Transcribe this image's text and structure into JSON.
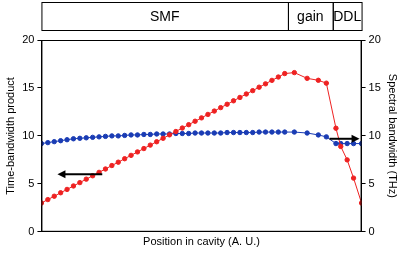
{
  "chart_data": {
    "type": "line",
    "x_label": "Position in cavity (A. U.)",
    "y_label": "Time-bandwidth product",
    "y2_label": "Spectral bandwidth (THz)",
    "regions": [
      {
        "label": "SMF",
        "start": 0,
        "end": 77
      },
      {
        "label": "gain",
        "start": 77,
        "end": 91
      },
      {
        "label": "DDL",
        "start": 91,
        "end": 100
      }
    ],
    "x": [
      0,
      2,
      4,
      6,
      8,
      10,
      12,
      14,
      16,
      18,
      20,
      22,
      24,
      26,
      28,
      30,
      32,
      34,
      36,
      38,
      40,
      42,
      44,
      46,
      48,
      50,
      52,
      54,
      56,
      58,
      60,
      62,
      64,
      66,
      68,
      70,
      72,
      74,
      76,
      79,
      83,
      86.5,
      89,
      92,
      93.5,
      95.5,
      97.5,
      100
    ],
    "series": [
      {
        "name": "Time-bandwidth product",
        "color": "#ee2222",
        "marker": "circle",
        "values": [
          3.0,
          3.36,
          3.71,
          4.07,
          4.42,
          4.78,
          5.13,
          5.49,
          5.84,
          6.2,
          6.55,
          6.91,
          7.26,
          7.62,
          7.97,
          8.33,
          8.68,
          9.04,
          9.39,
          9.75,
          10.11,
          10.46,
          10.82,
          11.17,
          11.53,
          11.88,
          12.24,
          12.59,
          12.95,
          13.3,
          13.66,
          14.01,
          14.37,
          14.72,
          15.08,
          15.43,
          15.79,
          16.14,
          16.5,
          16.6,
          16.0,
          15.8,
          15.5,
          10.8,
          8.9,
          7.5,
          5.6,
          3.0
        ]
      },
      {
        "name": "Spectral bandwidth (THz)",
        "color": "#1a3cb4",
        "marker": "circle",
        "axis": "y2",
        "values": [
          9.2,
          9.3,
          9.4,
          9.5,
          9.6,
          9.7,
          9.75,
          9.8,
          9.85,
          9.9,
          9.95,
          10.0,
          10.0,
          10.05,
          10.1,
          10.1,
          10.15,
          10.15,
          10.2,
          10.2,
          10.2,
          10.25,
          10.25,
          10.25,
          10.3,
          10.3,
          10.3,
          10.3,
          10.3,
          10.35,
          10.35,
          10.35,
          10.35,
          10.35,
          10.4,
          10.4,
          10.4,
          10.4,
          10.4,
          10.4,
          10.3,
          10.1,
          9.9,
          9.2,
          9.2,
          9.2,
          9.2,
          9.2
        ]
      }
    ],
    "xlim": [
      0,
      100
    ],
    "ylim": [
      0,
      20
    ],
    "yticks": [
      0,
      5,
      10,
      15,
      20
    ],
    "y2lim": [
      0,
      20
    ],
    "y2ticks": [
      0,
      5,
      10,
      15,
      20
    ],
    "grid": false,
    "tick_labels": "y"
  }
}
